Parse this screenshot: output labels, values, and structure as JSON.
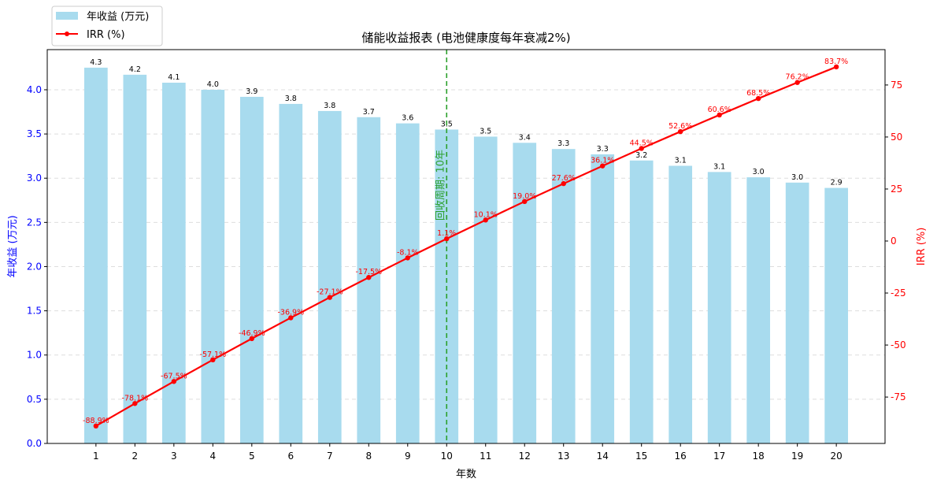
{
  "chart_data": {
    "type": "bar+line",
    "title": "储能收益报表 (电池健康度每年衰减2%)",
    "xlabel": "年数",
    "ylabel_left": "年收益 (万元)",
    "ylabel_right": "IRR (%)",
    "categories": [
      1,
      2,
      3,
      4,
      5,
      6,
      7,
      8,
      9,
      10,
      11,
      12,
      13,
      14,
      15,
      16,
      17,
      18,
      19,
      20
    ],
    "xlim": [
      -0.25,
      21.25
    ],
    "ylim_left": [
      0,
      4.454
    ],
    "ylim_right": [
      -97.3,
      92
    ],
    "yticks_left": [
      "0.0",
      "0.5",
      "1.0",
      "1.5",
      "2.0",
      "2.5",
      "3.0",
      "3.5",
      "4.0"
    ],
    "yticks_right": [
      "-75",
      "-50",
      "-25",
      "0",
      "25",
      "50",
      "75"
    ],
    "grid": "horizontal dashed",
    "legend_position": "top-left",
    "series": [
      {
        "name": "年收益 (万元)",
        "type": "bar",
        "color": "#a8dbee",
        "values": [
          4.25,
          4.17,
          4.08,
          4.0,
          3.92,
          3.84,
          3.76,
          3.69,
          3.62,
          3.55,
          3.47,
          3.4,
          3.33,
          3.27,
          3.2,
          3.14,
          3.07,
          3.01,
          2.95,
          2.89
        ],
        "labels": [
          "4.3",
          "4.2",
          "4.1",
          "4.0",
          "3.9",
          "3.8",
          "3.8",
          "3.7",
          "3.6",
          "3.5",
          "3.5",
          "3.4",
          "3.3",
          "3.3",
          "3.2",
          "3.1",
          "3.1",
          "3.0",
          "3.0",
          "2.9"
        ]
      },
      {
        "name": "IRR (%)",
        "type": "line",
        "color": "#ff0000",
        "values": [
          -88.9,
          -78.1,
          -67.5,
          -57.1,
          -46.9,
          -36.9,
          -27.1,
          -17.5,
          -8.1,
          1.1,
          10.1,
          19.0,
          27.6,
          36.1,
          44.5,
          52.6,
          60.6,
          68.5,
          76.2,
          83.7
        ],
        "labels": [
          "-88.9%",
          "-78.1%",
          "-67.5%",
          "-57.1%",
          "-46.9%",
          "-36.9%",
          "-27.1%",
          "-17.5%",
          "-8.1%",
          "1.1%",
          "10.1%",
          "19.0%",
          "27.6%",
          "36.1%",
          "44.5%",
          "52.6%",
          "60.6%",
          "68.5%",
          "76.2%",
          "83.7%"
        ]
      }
    ],
    "annotation": {
      "x": 10,
      "text": "回收周期: 10年",
      "color": "#2ca02c"
    },
    "left_axis_color": "#0000ff",
    "right_axis_color": "#ff0000"
  }
}
